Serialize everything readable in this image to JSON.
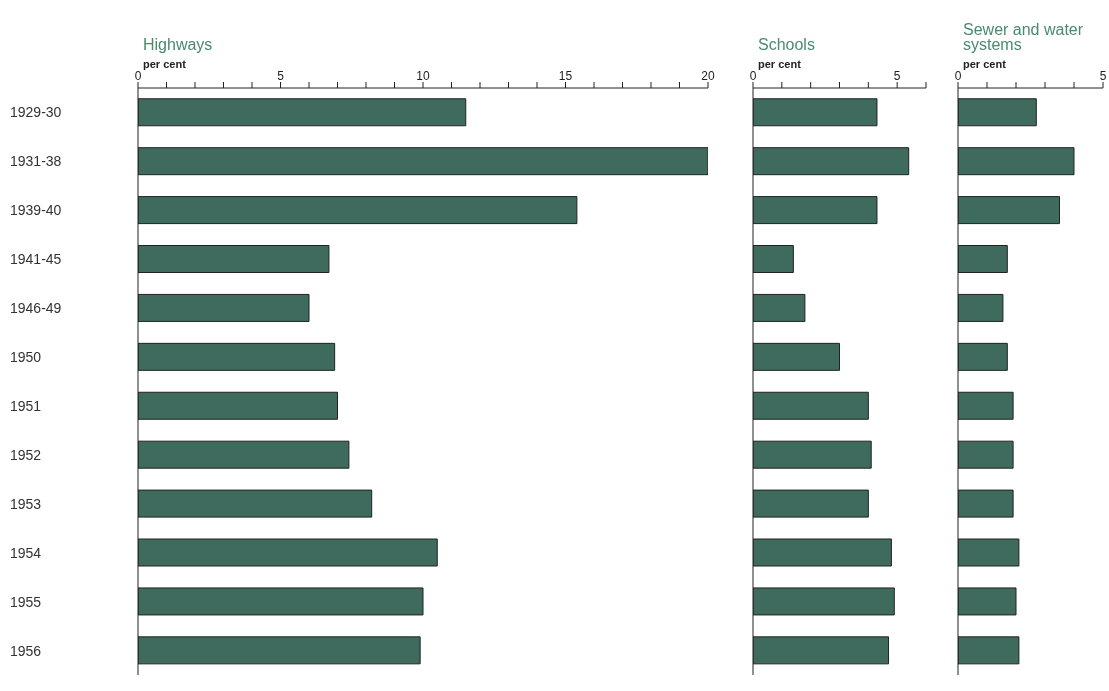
{
  "chart_data": [
    {
      "type": "bar",
      "orientation": "horizontal",
      "title": "Highways",
      "xlabel": "per cent",
      "categories": [
        "1929-30",
        "1931-38",
        "1939-40",
        "1941-45",
        "1946-49",
        "1950",
        "1951",
        "1952",
        "1953",
        "1954",
        "1955",
        "1956"
      ],
      "values": [
        11.5,
        20.0,
        15.4,
        6.7,
        6.0,
        6.9,
        7.0,
        7.4,
        8.2,
        10.5,
        10.0,
        9.9
      ],
      "color": "#3f6b5e",
      "xlim": [
        0,
        20
      ],
      "xticks": [
        0,
        {
          "value": 1,
          "label": null
        },
        {
          "value": 2,
          "label": null
        },
        {
          "value": 3,
          "label": null
        },
        {
          "value": 4,
          "label": null
        },
        5,
        {
          "value": 6,
          "label": null
        },
        {
          "value": 7,
          "label": null
        },
        {
          "value": 8,
          "label": null
        },
        {
          "value": 9,
          "label": null
        },
        10,
        {
          "value": 11,
          "label": null
        },
        {
          "value": 12,
          "label": null
        },
        {
          "value": 13,
          "label": null
        },
        {
          "value": 14,
          "label": null
        },
        15,
        {
          "value": 16,
          "label": null
        },
        {
          "value": 17,
          "label": null
        },
        {
          "value": 18,
          "label": null
        },
        {
          "value": 19,
          "label": null
        },
        20
      ]
    },
    {
      "type": "bar",
      "orientation": "horizontal",
      "title": "Schools",
      "xlabel": "per cent",
      "tick_labels": "x",
      "categories": [
        "1929-30",
        "1931-38",
        "1939-40",
        "1941-45",
        "1946-49",
        "1950",
        "1951",
        "1952",
        "1953",
        "1954",
        "1955",
        "1956"
      ],
      "values": [
        4.3,
        5.4,
        4.3,
        1.4,
        1.8,
        3.0,
        4.0,
        4.1,
        4.0,
        4.8,
        4.9,
        4.7
      ],
      "color": "#3f6b5e",
      "xlim": [
        0,
        6
      ],
      "xticks": [
        0,
        {
          "value": 1,
          "label": null
        },
        {
          "value": 2,
          "label": null
        },
        {
          "value": 3,
          "label": null
        },
        {
          "value": 4,
          "label": null
        },
        5,
        {
          "value": 6,
          "label": null
        }
      ]
    },
    {
      "type": "bar",
      "orientation": "horizontal",
      "title": "Sewer and water systems",
      "xlabel": "per cent",
      "tick_labels": "x",
      "categories": [
        "1929-30",
        "1931-38",
        "1939-40",
        "1941-45",
        "1946-49",
        "1950",
        "1951",
        "1952",
        "1953",
        "1954",
        "1955",
        "1956"
      ],
      "values": [
        2.7,
        4.0,
        3.5,
        1.7,
        1.55,
        1.7,
        1.9,
        1.9,
        1.9,
        2.1,
        2.0,
        2.1
      ],
      "color": "#3f6b5e",
      "xlim": [
        0,
        5
      ],
      "xticks": [
        0,
        {
          "value": 1,
          "label": null
        },
        {
          "value": 2,
          "label": null
        },
        {
          "value": 3,
          "label": null
        },
        {
          "value": 4,
          "label": null
        },
        5
      ]
    }
  ]
}
